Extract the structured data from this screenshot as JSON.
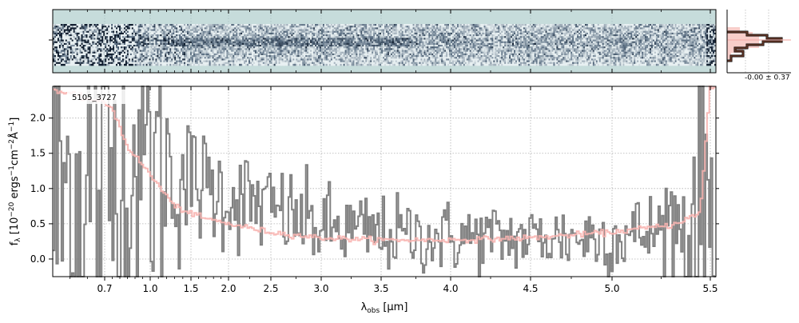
{
  "chart_data": [
    {
      "type": "heatmap",
      "panel": "2d-spectrum",
      "description_colormap": "bone-like (dark navy to light teal-grey)",
      "grid": true,
      "rows": 24,
      "cols": 420,
      "background_color": "#c6dcdb",
      "dark_color": "#0d1a2b"
    },
    {
      "type": "line",
      "panel": "profile-histogram",
      "annotation": "-0.00 ± 0.37",
      "profile_points": [
        [
          0.15,
          0.55
        ],
        [
          0.3,
          0.45
        ],
        [
          0.8,
          0.4
        ],
        [
          0.95,
          0.35
        ],
        [
          0.7,
          0.3
        ],
        [
          0.2,
          0.25
        ],
        [
          0.1,
          0.18
        ]
      ],
      "colors": {
        "profile": "#6a3b2a",
        "fill": "#f7c9c4",
        "ref": "#f4b2ad"
      }
    },
    {
      "type": "line",
      "panel": "1d-spectrum",
      "object_label": "5105_3727",
      "xlabel": "λobs [μm]",
      "ylabel": "fλ [10−20 ergs−1cm−2Å−1]",
      "xlim": [
        0.55,
        5.52
      ],
      "ylim": [
        -0.25,
        2.45
      ],
      "x_scale": "nonlinear (roughly sqrt) wavelength axis",
      "x_ticks": [
        0.7,
        1.0,
        1.5,
        2.0,
        2.5,
        3.0,
        3.5,
        4.0,
        4.5,
        5.0,
        5.5
      ],
      "x_tick_labels": [
        "0.7",
        "1.0",
        "1.5",
        "2.0",
        "2.5",
        "3.0",
        "3.5",
        "4.0",
        "4.5",
        "5.0",
        "5.5"
      ],
      "y_ticks": [
        0.0,
        0.5,
        1.0,
        1.5,
        2.0
      ],
      "y_tick_labels": [
        "0.0",
        "0.5",
        "1.0",
        "1.5",
        "2.0"
      ],
      "grid": true,
      "series": [
        {
          "role": "flux",
          "color": "#808080",
          "trend": [
            [
              0.55,
              0.8
            ],
            [
              0.8,
              1.2
            ],
            [
              1.0,
              1.4
            ],
            [
              1.5,
              1.1
            ],
            [
              2.0,
              0.9
            ],
            [
              2.5,
              0.7
            ],
            [
              3.0,
              0.45
            ],
            [
              3.5,
              0.35
            ],
            [
              4.0,
              0.3
            ],
            [
              4.5,
              0.3
            ],
            [
              5.0,
              0.32
            ],
            [
              5.3,
              0.4
            ],
            [
              5.45,
              0.6
            ],
            [
              5.5,
              1.0
            ]
          ],
          "noise": [
            [
              0.55,
              2.2
            ],
            [
              1.0,
              1.2
            ],
            [
              1.5,
              0.45
            ],
            [
              2.5,
              0.35
            ],
            [
              3.5,
              0.28
            ],
            [
              4.5,
              0.25
            ],
            [
              5.2,
              0.3
            ],
            [
              5.5,
              1.2
            ]
          ]
        },
        {
          "role": "model",
          "color": "#f8b4b0",
          "points": [
            [
              0.55,
              2.4
            ],
            [
              0.75,
              2.15
            ],
            [
              0.85,
              1.6
            ],
            [
              1.0,
              1.2
            ],
            [
              1.3,
              0.75
            ],
            [
              1.6,
              0.6
            ],
            [
              2.0,
              0.5
            ],
            [
              2.5,
              0.38
            ],
            [
              3.0,
              0.3
            ],
            [
              3.5,
              0.27
            ],
            [
              4.0,
              0.27
            ],
            [
              4.5,
              0.3
            ],
            [
              5.0,
              0.38
            ],
            [
              5.3,
              0.48
            ],
            [
              5.45,
              0.65
            ],
            [
              5.5,
              2.45
            ]
          ]
        }
      ]
    }
  ]
}
